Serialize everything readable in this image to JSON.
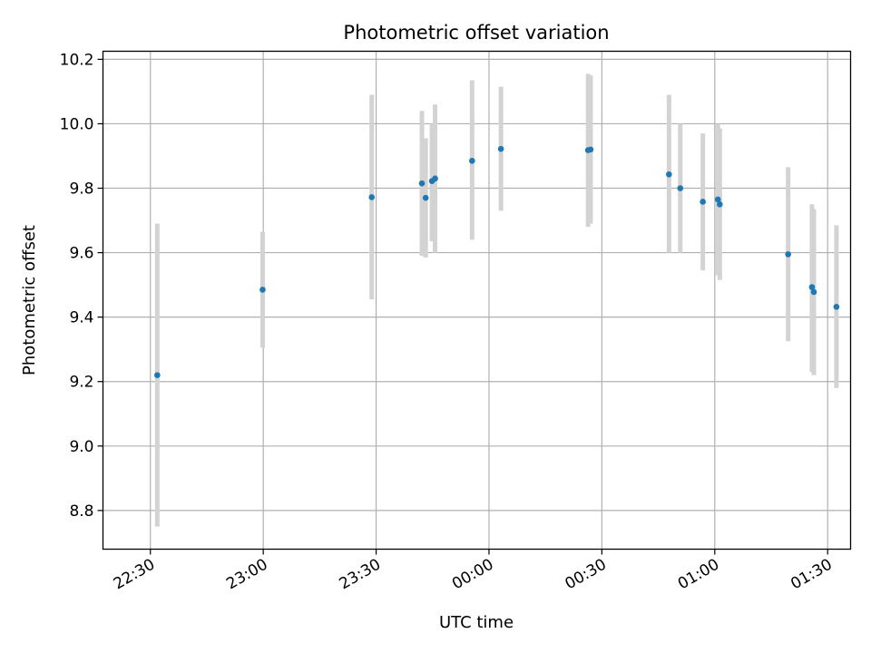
{
  "chart_data": {
    "type": "scatter",
    "title": "Photometric offset variation",
    "xlabel": "UTC time",
    "ylabel": "Photometric offset",
    "x_range_minutes": [
      1337.4,
      1536.1
    ],
    "ylim": [
      8.68,
      10.225
    ],
    "x_ticks": [
      {
        "label": "22:30",
        "minutes": 1350
      },
      {
        "label": "23:00",
        "minutes": 1380
      },
      {
        "label": "23:30",
        "minutes": 1410
      },
      {
        "label": "00:00",
        "minutes": 1440
      },
      {
        "label": "00:30",
        "minutes": 1470
      },
      {
        "label": "01:00",
        "minutes": 1500
      },
      {
        "label": "01:30",
        "minutes": 1530
      }
    ],
    "y_ticks": [
      "8.8",
      "9.0",
      "9.2",
      "9.4",
      "9.6",
      "9.8",
      "10.0",
      "10.2"
    ],
    "grid": true,
    "point_color": "#1f77b4",
    "errorbar_color": "#d3d3d3",
    "points": [
      {
        "t": "22:31:50",
        "y": 9.22,
        "lo": 8.75,
        "hi": 9.69
      },
      {
        "t": "22:59:50",
        "y": 9.485,
        "lo": 9.305,
        "hi": 9.665
      },
      {
        "t": "23:28:50",
        "y": 9.772,
        "lo": 9.455,
        "hi": 10.09
      },
      {
        "t": "23:42:10",
        "y": 9.815,
        "lo": 9.59,
        "hi": 10.04
      },
      {
        "t": "23:43:10",
        "y": 9.77,
        "lo": 9.585,
        "hi": 9.955
      },
      {
        "t": "23:44:50",
        "y": 9.822,
        "lo": 9.635,
        "hi": 10.0
      },
      {
        "t": "23:45:40",
        "y": 9.83,
        "lo": 9.6,
        "hi": 10.06
      },
      {
        "t": "23:55:30",
        "y": 9.885,
        "lo": 9.64,
        "hi": 10.135
      },
      {
        "t": "00:03:10",
        "y": 9.922,
        "lo": 9.73,
        "hi": 10.115
      },
      {
        "t": "00:26:20",
        "y": 9.918,
        "lo": 9.68,
        "hi": 10.155
      },
      {
        "t": "00:27:00",
        "y": 9.92,
        "lo": 9.69,
        "hi": 10.15
      },
      {
        "t": "00:47:50",
        "y": 9.843,
        "lo": 9.6,
        "hi": 10.09
      },
      {
        "t": "00:50:50",
        "y": 9.8,
        "lo": 9.6,
        "hi": 10.0
      },
      {
        "t": "00:56:50",
        "y": 9.758,
        "lo": 9.545,
        "hi": 9.97
      },
      {
        "t": "01:00:50",
        "y": 9.765,
        "lo": 9.53,
        "hi": 10.0
      },
      {
        "t": "01:01:20",
        "y": 9.75,
        "lo": 9.515,
        "hi": 9.985
      },
      {
        "t": "01:19:30",
        "y": 9.595,
        "lo": 9.325,
        "hi": 9.865
      },
      {
        "t": "01:25:50",
        "y": 9.493,
        "lo": 9.23,
        "hi": 9.75
      },
      {
        "t": "01:26:20",
        "y": 9.478,
        "lo": 9.22,
        "hi": 9.735
      },
      {
        "t": "01:32:20",
        "y": 9.432,
        "lo": 9.18,
        "hi": 9.685
      }
    ]
  }
}
